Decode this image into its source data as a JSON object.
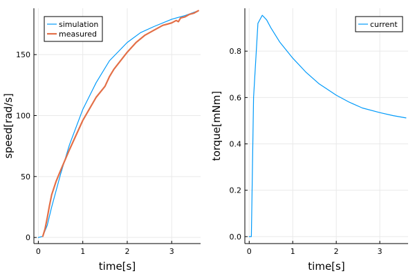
{
  "chart_data": [
    {
      "type": "line",
      "xlabel": "time[s]",
      "ylabel": "speed[rad/s]",
      "xlim": [
        -0.1,
        3.65
      ],
      "ylim": [
        -5,
        188
      ],
      "xticks": [
        0,
        1,
        2,
        3
      ],
      "yticks": [
        0,
        50,
        100,
        150
      ],
      "grid": true,
      "legend": "top-left",
      "series": [
        {
          "name": "simulation",
          "color": "#009AFA",
          "width": 1.2,
          "x": [
            0,
            0.1,
            0.2,
            0.3,
            0.5,
            0.7,
            1.0,
            1.3,
            1.6,
            2.0,
            2.3,
            2.6,
            3.0,
            3.3,
            3.6
          ],
          "y": [
            0,
            1,
            10,
            25,
            52,
            76,
            105,
            127,
            145,
            160,
            168,
            173,
            179,
            182,
            186
          ]
        },
        {
          "name": "measured",
          "color": "#E36F47",
          "width": 2.2,
          "x": [
            0.1,
            0.15,
            0.2,
            0.25,
            0.3,
            0.4,
            0.5,
            0.7,
            1.0,
            1.3,
            1.5,
            1.6,
            1.7,
            2.0,
            2.2,
            2.4,
            2.6,
            2.8,
            2.9,
            3.0,
            3.1,
            3.15,
            3.2,
            3.3,
            3.4,
            3.5,
            3.6
          ],
          "y": [
            1,
            7,
            16,
            26,
            35,
            46,
            55,
            72,
            96,
            115,
            124,
            132,
            138,
            152,
            160,
            166,
            170,
            174,
            175,
            176,
            178,
            177,
            180,
            181,
            183,
            184,
            186
          ]
        }
      ]
    },
    {
      "type": "line",
      "xlabel": "time[s]",
      "ylabel": "torque[mNm]",
      "xlim": [
        -0.1,
        3.65
      ],
      "ylim": [
        -0.03,
        0.985
      ],
      "xticks": [
        0,
        1,
        2,
        3
      ],
      "yticks": [
        0.0,
        0.2,
        0.4,
        0.6,
        0.8
      ],
      "grid": true,
      "legend": "top-right",
      "series": [
        {
          "name": "current",
          "color": "#009AFA",
          "width": 1.2,
          "x": [
            0,
            0.05,
            0.1,
            0.2,
            0.3,
            0.4,
            0.5,
            0.7,
            1.0,
            1.3,
            1.6,
            2.0,
            2.3,
            2.6,
            3.0,
            3.3,
            3.6
          ],
          "y": [
            0.0,
            0.0,
            0.6,
            0.92,
            0.955,
            0.935,
            0.9,
            0.84,
            0.77,
            0.71,
            0.66,
            0.61,
            0.58,
            0.555,
            0.535,
            0.522,
            0.512
          ]
        }
      ]
    }
  ]
}
